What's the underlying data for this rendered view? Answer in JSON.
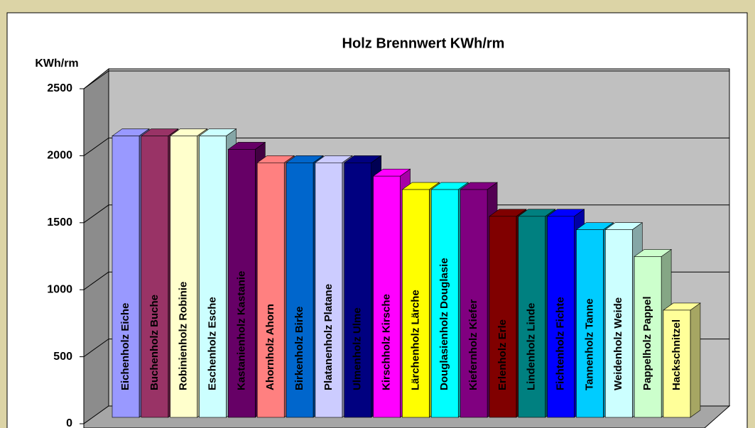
{
  "chart_data": {
    "type": "bar3d",
    "title": "Holz Brennwert KWh/rm",
    "y_label": "KWh/rm",
    "categories": [
      "Eichenholz Eiche",
      "Buchenholz Buche",
      "Robinienholz Robinie",
      "Eschenholz Esche",
      "Kastanienholz Kastanie",
      "Ahornholz Ahorn",
      "Birkenholz Birke",
      "Platanenholz Platane",
      "Ulmenholz Ulme",
      "Kirschholz Kirsche",
      "Lärchenholz Lärche",
      "Douglasienholz Douglasie",
      "Kiefernholz Kiefer",
      "Erlenholz Erle",
      "Lindenholz Linde",
      "Fichtenholz Fichte",
      "Tannenholz Tanne",
      "Weidenholz Weide",
      "Pappelholz Pappel",
      "Hackschnitzel"
    ],
    "values": [
      2100,
      2100,
      2100,
      2100,
      2000,
      1900,
      1900,
      1900,
      1900,
      1800,
      1700,
      1700,
      1700,
      1500,
      1500,
      1500,
      1400,
      1400,
      1200,
      800
    ],
    "colors": [
      "#9999ff",
      "#993366",
      "#ffffcc",
      "#ccffff",
      "#660066",
      "#ff8080",
      "#0066cc",
      "#ccccff",
      "#000080",
      "#ff00ff",
      "#ffff00",
      "#00ffff",
      "#800080",
      "#800000",
      "#008080",
      "#0000ff",
      "#00ccff",
      "#ccffff",
      "#ccffcc",
      "#ffff99"
    ],
    "ylim": [
      0,
      2500
    ],
    "yticks": [
      0,
      500,
      1000,
      1500,
      2000,
      2500
    ],
    "grid": true
  }
}
